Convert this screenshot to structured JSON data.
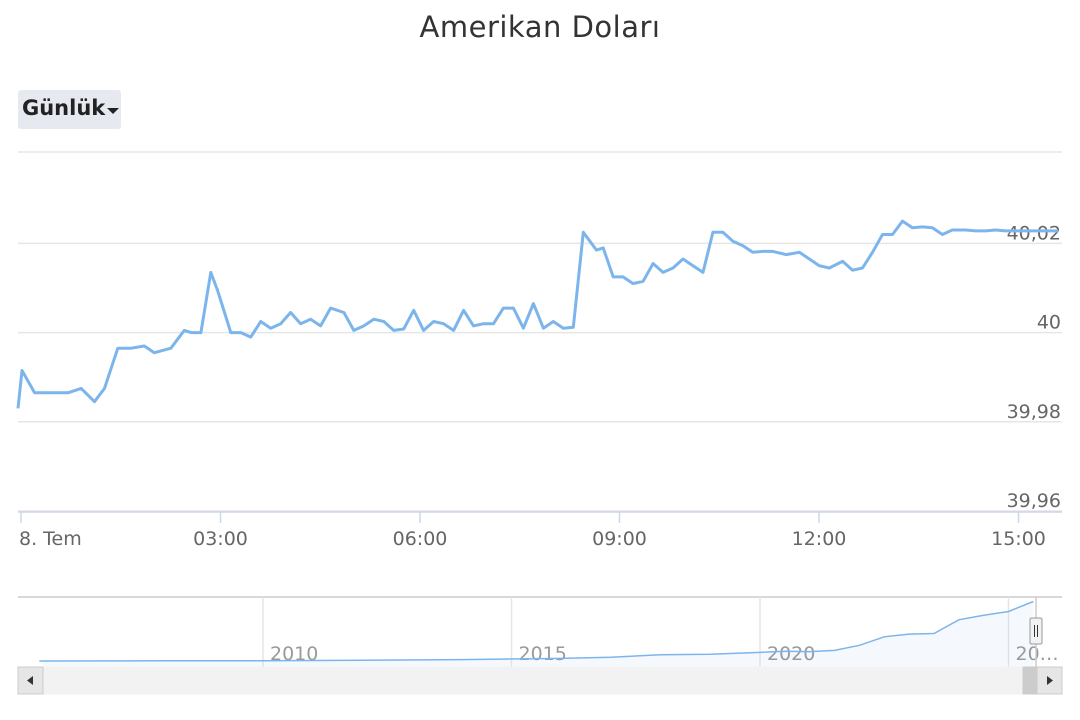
{
  "title": "Amerikan Doları",
  "range_selector": {
    "label": "Günlük",
    "icon": "caret-down-icon"
  },
  "colors": {
    "line": "#7cb5ec",
    "grid": "#e6e6e6",
    "navigator_line": "#7cb5ec",
    "scrollbar": "#f2f2f2"
  },
  "chart_data": {
    "type": "line",
    "title": "Amerikan Doları",
    "xlabel": "",
    "ylabel": "",
    "x_tick_labels": [
      "8. Tem",
      "03:00",
      "06:00",
      "09:00",
      "12:00",
      "15:00"
    ],
    "y_tick_labels": [
      "39,96",
      "39,98",
      "40",
      "40,02"
    ],
    "ylim": [
      39.96,
      40.0405
    ],
    "xlim_hours": [
      0,
      15.64
    ],
    "grid": true,
    "series": [
      {
        "x_hours": [
          0.0,
          0.06,
          0.25,
          0.5,
          0.75,
          0.95,
          1.15,
          1.3,
          1.5,
          1.7,
          1.9,
          2.05,
          2.3,
          2.5,
          2.6,
          2.75,
          2.9,
          3.0,
          3.2,
          3.35,
          3.5,
          3.65,
          3.8,
          3.95,
          4.1,
          4.25,
          4.4,
          4.55,
          4.7,
          4.9,
          5.05,
          5.2,
          5.35,
          5.5,
          5.65,
          5.8,
          5.95,
          6.1,
          6.25,
          6.4,
          6.55,
          6.7,
          6.85,
          7.0,
          7.15,
          7.3,
          7.45,
          7.6,
          7.75,
          7.9,
          8.05,
          8.2,
          8.35,
          8.5,
          8.7,
          8.8,
          8.95,
          9.1,
          9.25,
          9.4,
          9.55,
          9.7,
          9.85,
          10.0,
          10.15,
          10.3,
          10.45,
          10.6,
          10.75,
          10.9,
          11.05,
          11.2,
          11.35,
          11.55,
          11.75,
          11.9,
          12.05,
          12.2,
          12.4,
          12.55,
          12.7,
          12.85,
          13.0,
          13.15,
          13.3,
          13.45,
          13.6,
          13.75,
          13.9,
          14.05,
          14.25,
          14.4,
          14.55,
          14.7,
          14.85,
          15.0,
          15.2,
          15.35,
          15.5,
          15.64
        ],
        "values": [
          39.983,
          39.9915,
          39.9865,
          39.9865,
          39.9865,
          39.9875,
          39.9845,
          39.9875,
          39.9965,
          39.9965,
          39.997,
          39.9955,
          39.9965,
          40.0005,
          40.0,
          40.0,
          40.0135,
          40.0095,
          40.0,
          40.0,
          39.999,
          40.0025,
          40.001,
          40.002,
          40.0045,
          40.002,
          40.003,
          40.0015,
          40.0055,
          40.0045,
          40.0005,
          40.0015,
          40.003,
          40.0025,
          40.0005,
          40.0008,
          40.005,
          40.0005,
          40.0025,
          40.002,
          40.0005,
          40.005,
          40.0015,
          40.002,
          40.002,
          40.0055,
          40.0055,
          40.001,
          40.0065,
          40.001,
          40.0025,
          40.001,
          40.0012,
          40.0225,
          40.0185,
          40.019,
          40.0125,
          40.0125,
          40.011,
          40.0115,
          40.0155,
          40.0135,
          40.0145,
          40.0165,
          40.015,
          40.0135,
          40.0225,
          40.0225,
          40.0205,
          40.0195,
          40.018,
          40.0182,
          40.0182,
          40.0175,
          40.018,
          40.0165,
          40.015,
          40.0145,
          40.016,
          40.014,
          40.0145,
          40.018,
          40.022,
          40.022,
          40.025,
          40.0235,
          40.0237,
          40.0235,
          40.022,
          40.023,
          40.023,
          40.0228,
          40.0228,
          40.023,
          40.0228,
          40.0228,
          40.0228,
          40.0228,
          40.0228,
          40.0228
        ]
      }
    ],
    "navigator": {
      "type": "area",
      "x_tick_labels": [
        "2010",
        "2015",
        "2020",
        "20…"
      ],
      "years": [
        2005.5,
        2008,
        2010,
        2012,
        2014,
        2016,
        2017,
        2018,
        2019,
        2020,
        2020.5,
        2021,
        2021.5,
        2022,
        2022.5,
        2023,
        2023.5,
        2024,
        2024.5,
        2025,
        2025.5
      ],
      "values": [
        1.3,
        1.4,
        1.5,
        1.8,
        2.2,
        3.0,
        3.8,
        5.3,
        5.7,
        6.9,
        7.6,
        7.4,
        8.2,
        11.5,
        17.0,
        18.8,
        19.2,
        28.1,
        31.0,
        33.5,
        40.0
      ],
      "ylim": [
        0,
        40.3
      ]
    }
  }
}
